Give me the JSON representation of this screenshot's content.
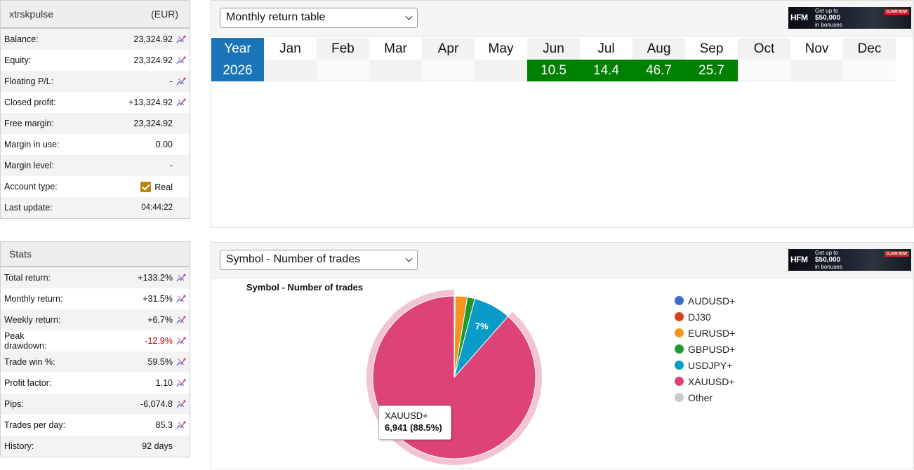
{
  "account": {
    "name": "xtrskpulse",
    "currency": "(EUR)",
    "rows": [
      {
        "label": "Balance:",
        "value": "23,324.92",
        "icon": true
      },
      {
        "label": "Equity:",
        "value": "23,324.92",
        "icon": true
      },
      {
        "label": "Floating P/L:",
        "value": "-",
        "icon": true
      },
      {
        "label": "Closed profit:",
        "value": "+13,324.92",
        "icon": true
      },
      {
        "label": "Free margin:",
        "value": "23,324.92",
        "icon": false
      },
      {
        "label": "Margin in use:",
        "value": "0.00",
        "icon": false
      },
      {
        "label": "Margin level:",
        "value": "-",
        "icon": false
      },
      {
        "label": "Account type:",
        "value": "Real",
        "icon": false
      },
      {
        "label": "Last update:",
        "value": "04:44:22",
        "icon": false
      }
    ]
  },
  "stats": {
    "title": "Stats",
    "rows": [
      {
        "label": "Total return:",
        "value": "+133.2%"
      },
      {
        "label": "Monthly return:",
        "value": "+31.5%"
      },
      {
        "label": "Weekly return:",
        "value": "+6.7%"
      },
      {
        "label": "Peak drawdown:",
        "value": "-12.9%"
      },
      {
        "label": "Trade win %:",
        "value": "59.5%"
      },
      {
        "label": "Profit factor:",
        "value": "1.10"
      },
      {
        "label": "Pips:",
        "value": "-6,074.8"
      },
      {
        "label": "Trades per day:",
        "value": "85.3"
      },
      {
        "label": "History:",
        "value": "92 days"
      }
    ]
  },
  "monthly": {
    "select_value": "Monthly return table",
    "year_header": "Year",
    "months": [
      "Jan",
      "Feb",
      "Mar",
      "Apr",
      "May",
      "Jun",
      "Jul",
      "Aug",
      "Sep",
      "Oct",
      "Nov",
      "Dec"
    ],
    "year": "2026",
    "values": [
      "",
      "",
      "",
      "",
      "",
      "10.5",
      "14.4",
      "46.7",
      "25.7",
      "",
      "",
      ""
    ]
  },
  "symbol": {
    "select_value": "Symbol - Number of trades",
    "chart_title": "Symbol - Number of trades",
    "tooltip_name": "XAUUSD+",
    "tooltip_value": "6,941 (88.5%)"
  },
  "ad": {
    "logo": "HFM",
    "line1": "Get up to",
    "line2": "$50,000",
    "line3": "in bonuses",
    "cta": "CLAIM NOW"
  },
  "colors": {
    "year_blue": "#1a75b8",
    "positive_green": "#008000",
    "negative_red": "#c00000"
  },
  "chart_data": {
    "type": "pie",
    "title": "Symbol - Number of trades",
    "legend_position": "right",
    "series": [
      {
        "name": "AUDUSD+",
        "value": 0.1,
        "color": "#3a6fd0"
      },
      {
        "name": "DJ30",
        "value": 0.1,
        "color": "#d9411e"
      },
      {
        "name": "EURUSD+",
        "value": 2.4,
        "color": "#f7941d"
      },
      {
        "name": "GBPUSD+",
        "value": 1.5,
        "color": "#1f9a2e"
      },
      {
        "name": "USDJPY+",
        "value": 7.4,
        "color": "#0a9bc8"
      },
      {
        "name": "XAUUSD+",
        "value": 88.5,
        "color": "#dc4376"
      },
      {
        "name": "Other",
        "value": 0.0,
        "color": "#cccccc"
      }
    ],
    "data_labels": [
      {
        "series": "USDJPY+",
        "text": "7%"
      }
    ],
    "highlighted": "XAUUSD+"
  }
}
